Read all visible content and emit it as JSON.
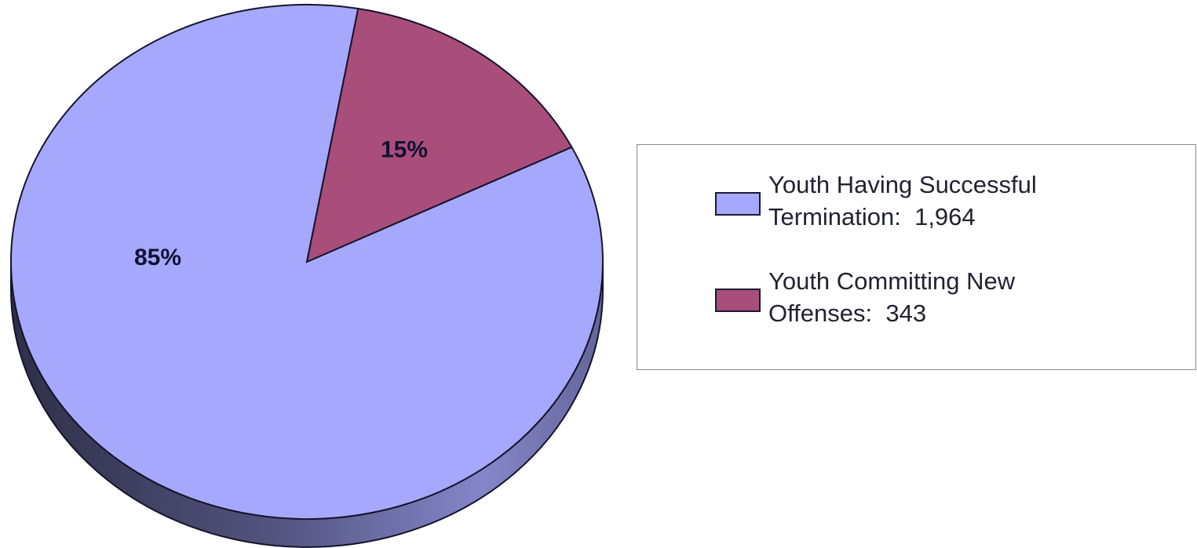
{
  "chart_data": {
    "type": "pie",
    "title": "",
    "slices": [
      {
        "label_line1": "Youth Having Successful",
        "label_line2": "Termination:  1,964",
        "value": 1964,
        "percent_label": "85%",
        "color": "#a6a8fd"
      },
      {
        "label_line1": "Youth Committing New",
        "label_line2": "Offenses:  343",
        "value": 343,
        "percent_label": "15%",
        "color": "#a94d7a"
      }
    ],
    "style": "3d-pie",
    "legend_position": "right"
  }
}
